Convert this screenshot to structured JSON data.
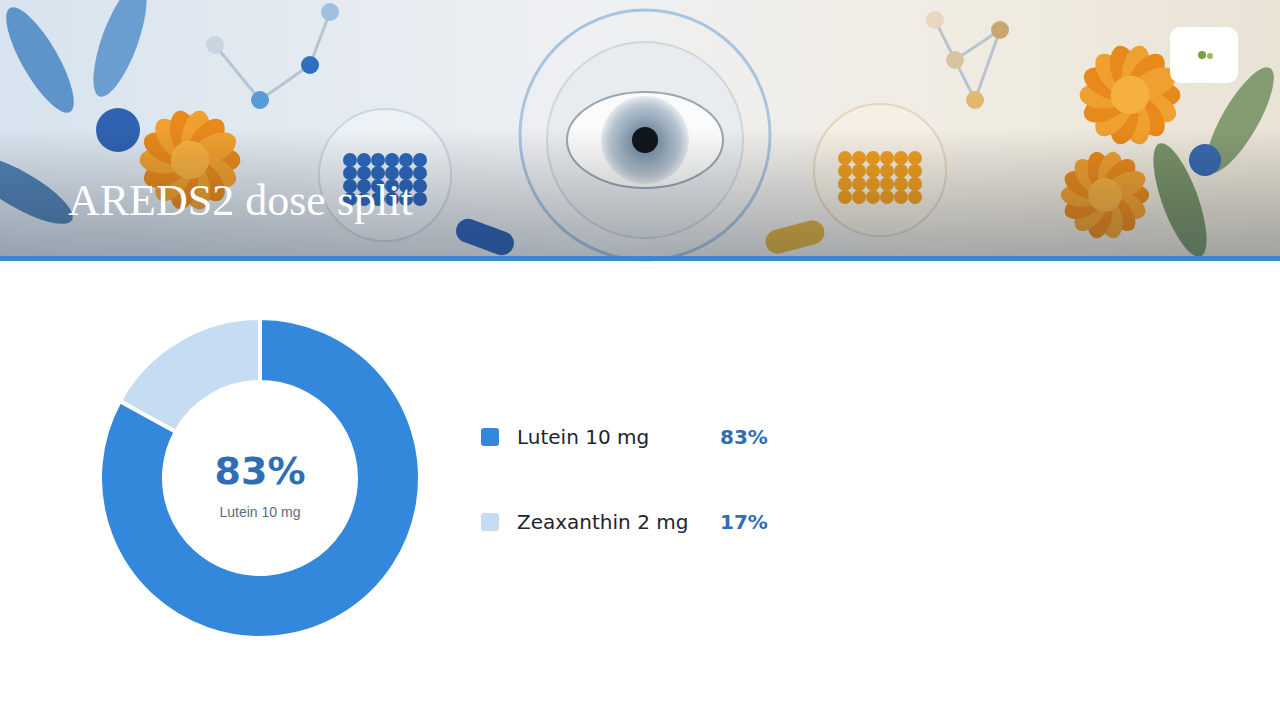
{
  "chart_data": {
    "type": "donut",
    "title": "AREDS2 dose split",
    "categories": [
      "Lutein 10 mg",
      "Zeaxanthin 2 mg"
    ],
    "values": [
      83,
      17
    ],
    "value_labels": [
      "83%",
      "17%"
    ],
    "colors": [
      "#3488dc",
      "#c6dcf3"
    ],
    "data_labels": true,
    "legend": "right"
  }
}
